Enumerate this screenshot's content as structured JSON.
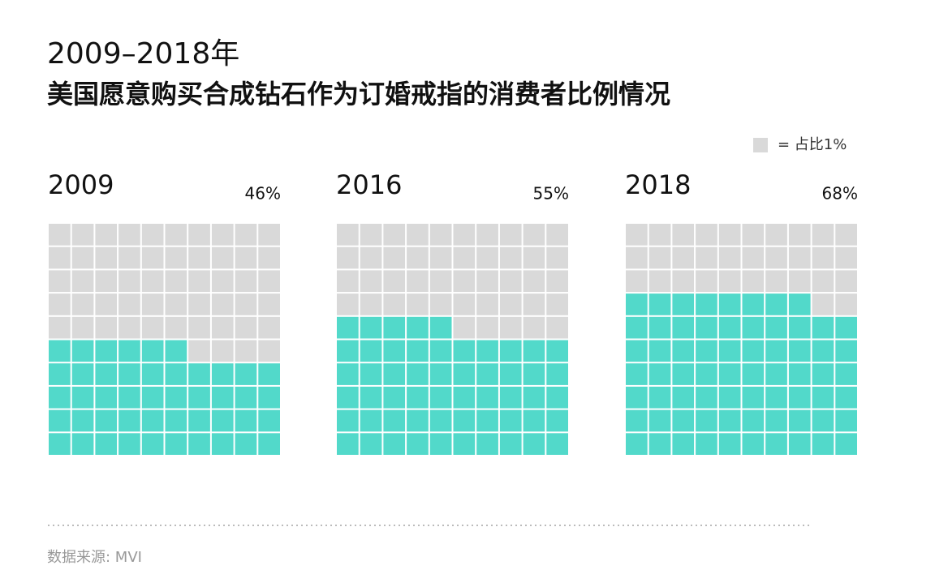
{
  "chart_data": {
    "type": "waffle",
    "title": "2009–2018年",
    "subtitle": "美国愿意购买合成钻石作为订婚戒指的消费者比例情况",
    "legend_label": "= 占比1%",
    "categories": [
      "2009",
      "2016",
      "2018"
    ],
    "values": [
      46,
      55,
      68
    ],
    "value_labels": [
      "46%",
      "55%",
      "68%"
    ],
    "color": "#52d9ca",
    "empty_color": "#d9d9d9",
    "source": "数据来源: MVI"
  }
}
